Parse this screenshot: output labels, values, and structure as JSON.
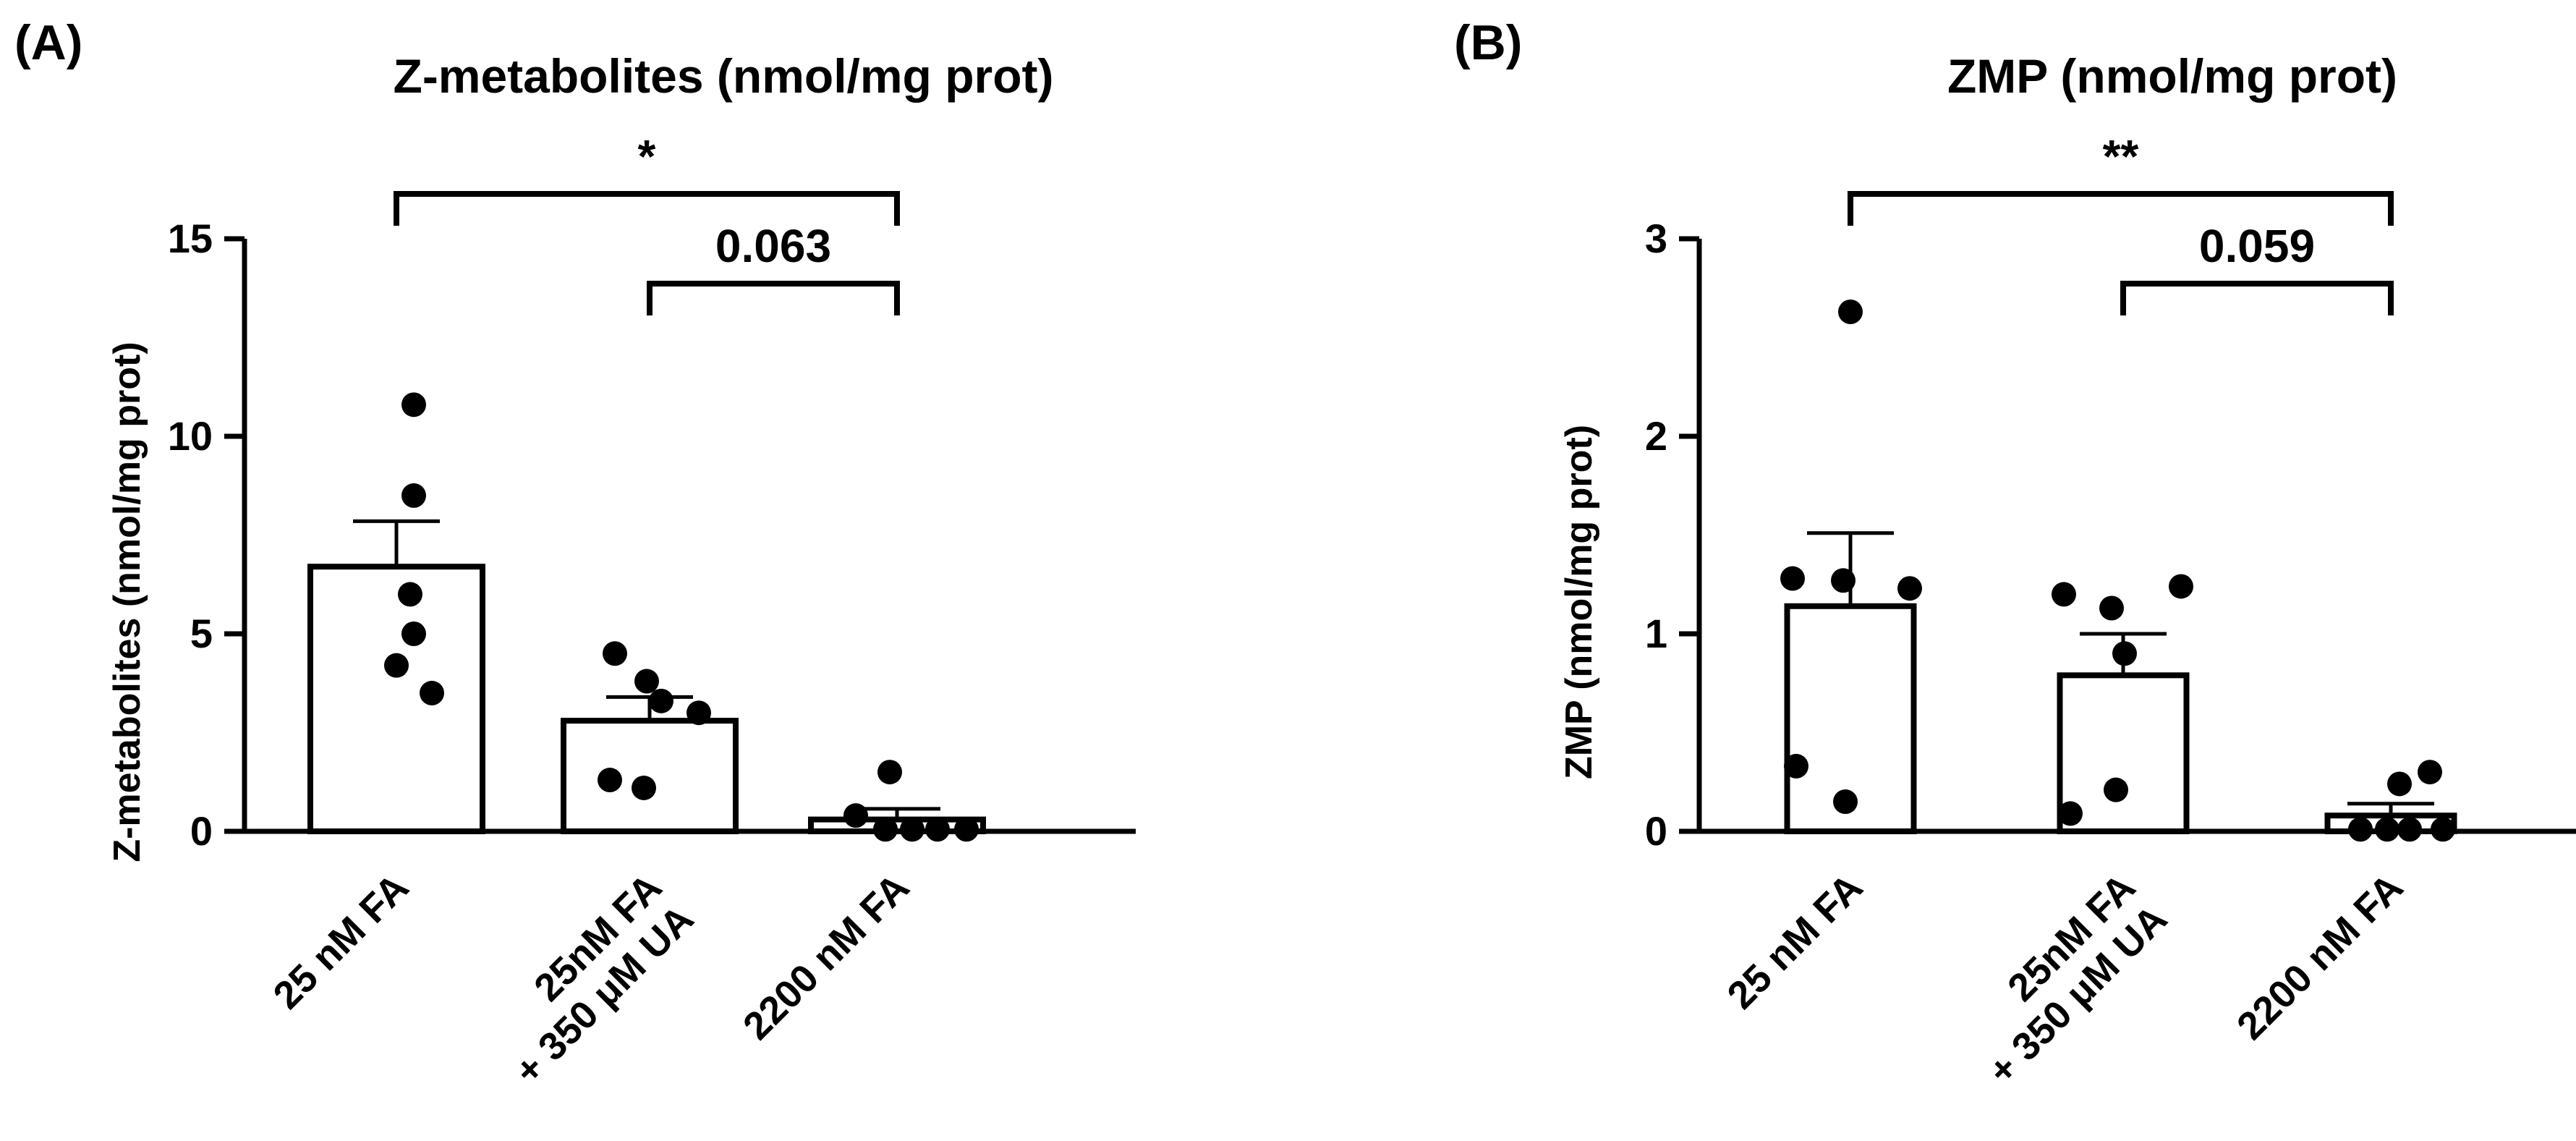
{
  "chart_data": [
    {
      "type": "bar",
      "panel_label": "(A)",
      "title": "Z-metabolites (nmol/mg prot)",
      "ylabel": "Z-metabolites (nmol/mg prot)",
      "ylim": [
        0,
        15
      ],
      "yticks": [
        0,
        5,
        10,
        15
      ],
      "ytick_labels": [
        "0",
        "5",
        "10",
        "15"
      ],
      "categories": [
        "25 nM FA",
        "25nM FA\n+ 350 μM UA",
        "2200 nM FA"
      ],
      "category_lines": [
        [
          "25 nM FA"
        ],
        [
          "25nM FA",
          "+ 350 μM UA"
        ],
        [
          "2200 nM FA"
        ]
      ],
      "values": [
        6.7,
        2.8,
        0.3
      ],
      "sem": [
        1.15,
        0.6,
        0.27
      ],
      "points": [
        [
          10.8,
          8.5,
          6.0,
          5.0,
          4.2,
          3.5
        ],
        [
          4.5,
          3.8,
          3.3,
          3.0,
          1.3,
          1.1
        ],
        [
          1.5,
          0.4,
          0.05,
          0.05,
          0.05,
          0.05
        ]
      ],
      "comparisons": [
        {
          "from": 0,
          "to": 2,
          "label": "*"
        },
        {
          "from": 1,
          "to": 2,
          "label": "0.063"
        }
      ]
    },
    {
      "type": "bar",
      "panel_label": "(B)",
      "title": "ZMP (nmol/mg prot)",
      "ylabel": "ZMP (nmol/mg prot)",
      "ylim": [
        0,
        3
      ],
      "yticks": [
        0,
        1,
        2,
        3
      ],
      "ytick_labels": [
        "0",
        "1",
        "2",
        "3"
      ],
      "categories": [
        "25 nM FA",
        "25nM FA\n+ 350 μM UA",
        "2200 nM FA"
      ],
      "category_lines": [
        [
          "25 nM FA"
        ],
        [
          "25nM FA",
          "+ 350 μM UA"
        ],
        [
          "2200 nM FA"
        ]
      ],
      "values": [
        1.14,
        0.79,
        0.08
      ],
      "sem": [
        0.37,
        0.21,
        0.06
      ],
      "points": [
        [
          2.63,
          1.28,
          1.27,
          1.23,
          0.33,
          0.15
        ],
        [
          1.24,
          1.2,
          1.13,
          0.9,
          0.21,
          0.09
        ],
        [
          0.3,
          0.24,
          0.01,
          0.01,
          0.01,
          0.01
        ]
      ],
      "comparisons": [
        {
          "from": 0,
          "to": 2,
          "label": "**"
        },
        {
          "from": 1,
          "to": 2,
          "label": "0.059"
        }
      ]
    }
  ]
}
